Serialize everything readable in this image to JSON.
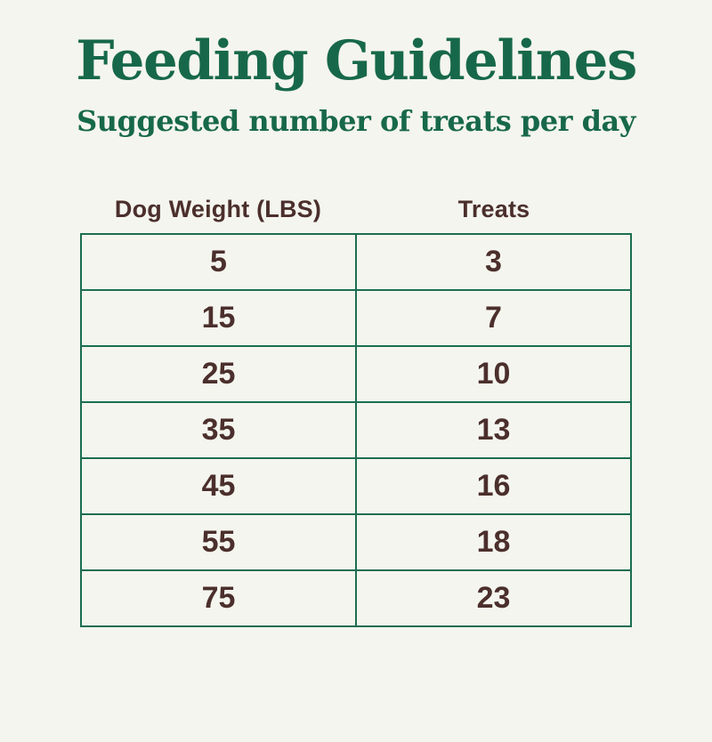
{
  "chart_data": {
    "type": "table",
    "title": "Feeding Guidelines",
    "subtitle": "Suggested number of treats per day",
    "columns": [
      "Dog Weight (LBS)",
      "Treats"
    ],
    "rows": [
      [
        "5",
        "3"
      ],
      [
        "15",
        "7"
      ],
      [
        "25",
        "10"
      ],
      [
        "35",
        "13"
      ],
      [
        "45",
        "16"
      ],
      [
        "55",
        "18"
      ],
      [
        "75",
        "23"
      ]
    ]
  },
  "colors": {
    "background": "#f4f5ee",
    "heading_green": "#17684a",
    "table_border_green": "#1d6e51",
    "text_brown": "#4b2f2c"
  }
}
